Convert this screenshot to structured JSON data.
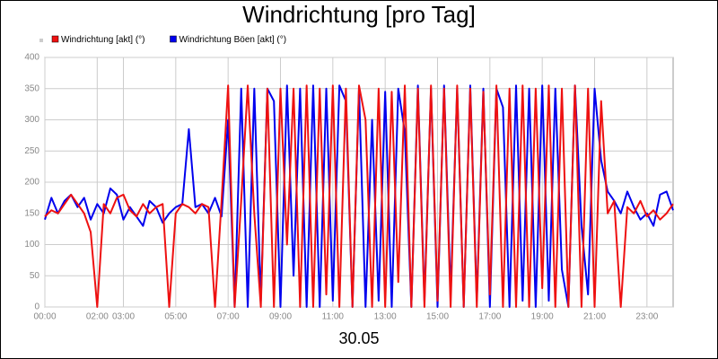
{
  "chart_data": {
    "type": "line",
    "title": "Windrichtung [pro Tag]",
    "x_label": "30.05",
    "x": [
      0,
      0.25,
      0.5,
      0.75,
      1,
      1.25,
      1.5,
      1.75,
      2,
      2.25,
      2.5,
      2.75,
      3,
      3.25,
      3.5,
      3.75,
      4,
      4.25,
      4.5,
      4.75,
      5,
      5.25,
      5.5,
      5.75,
      6,
      6.25,
      6.5,
      6.75,
      7,
      7.25,
      7.5,
      7.75,
      8,
      8.25,
      8.5,
      8.75,
      9,
      9.25,
      9.5,
      9.75,
      10,
      10.25,
      10.5,
      10.75,
      11,
      11.25,
      11.5,
      11.75,
      12,
      12.25,
      12.5,
      12.75,
      13,
      13.25,
      13.5,
      13.75,
      14,
      14.25,
      14.5,
      14.75,
      15,
      15.25,
      15.5,
      15.75,
      16,
      16.25,
      16.5,
      16.75,
      17,
      17.25,
      17.5,
      17.75,
      18,
      18.25,
      18.5,
      18.75,
      19,
      19.25,
      19.5,
      19.75,
      20,
      20.25,
      20.5,
      20.75,
      21,
      21.25,
      21.5,
      21.75,
      22,
      22.25,
      22.5,
      22.75,
      23,
      23.25,
      23.5,
      23.75,
      24
    ],
    "series": [
      {
        "name": "Windrichtung [akt] (°)",
        "color": "#ee1111",
        "values": [
          145,
          155,
          150,
          165,
          180,
          165,
          150,
          120,
          0,
          165,
          150,
          175,
          180,
          155,
          145,
          165,
          150,
          160,
          165,
          0,
          150,
          165,
          160,
          150,
          165,
          160,
          0,
          170,
          355,
          0,
          170,
          355,
          150,
          0,
          350,
          0,
          350,
          100,
          350,
          0,
          355,
          0,
          350,
          20,
          355,
          0,
          350,
          0,
          355,
          300,
          0,
          350,
          0,
          345,
          40,
          355,
          0,
          350,
          0,
          355,
          10,
          350,
          0,
          355,
          0,
          350,
          0,
          345,
          20,
          355,
          0,
          350,
          0,
          355,
          0,
          350,
          30,
          355,
          0,
          350,
          0,
          355,
          0,
          350,
          0,
          330,
          150,
          170,
          0,
          160,
          150,
          170,
          145,
          155,
          140,
          150,
          165
        ]
      },
      {
        "name": "Windrichtung Böen [akt] (°)",
        "color": "#0000ee",
        "values": [
          140,
          175,
          150,
          170,
          180,
          160,
          175,
          140,
          165,
          150,
          190,
          180,
          140,
          160,
          145,
          130,
          170,
          160,
          135,
          150,
          160,
          165,
          285,
          160,
          165,
          150,
          175,
          145,
          300,
          0,
          350,
          0,
          350,
          10,
          350,
          330,
          0,
          355,
          50,
          350,
          0,
          355,
          0,
          350,
          10,
          355,
          330,
          0,
          350,
          0,
          300,
          10,
          345,
          0,
          350,
          280,
          0,
          355,
          10,
          350,
          0,
          355,
          20,
          350,
          0,
          355,
          10,
          350,
          0,
          350,
          320,
          0,
          355,
          10,
          350,
          0,
          355,
          10,
          350,
          60,
          0,
          355,
          130,
          20,
          350,
          235,
          185,
          170,
          150,
          185,
          160,
          140,
          150,
          130,
          180,
          185,
          155
        ]
      }
    ],
    "xlim": [
      0,
      24
    ],
    "xticks": [
      {
        "value": 0,
        "label": "00:00"
      },
      {
        "value": 2,
        "label": "02:00"
      },
      {
        "value": 3,
        "label": "03:00"
      },
      {
        "value": 5,
        "label": "05:00"
      },
      {
        "value": 7,
        "label": "07:00"
      },
      {
        "value": 9,
        "label": "09:00"
      },
      {
        "value": 11,
        "label": "11:00"
      },
      {
        "value": 13,
        "label": "13:00"
      },
      {
        "value": 15,
        "label": "15:00"
      },
      {
        "value": 17,
        "label": "17:00"
      },
      {
        "value": 19,
        "label": "19:00"
      },
      {
        "value": 21,
        "label": "21:00"
      },
      {
        "value": 23,
        "label": "23:00"
      }
    ],
    "ylim": [
      0,
      400
    ],
    "yticks": [
      0,
      50,
      100,
      150,
      200,
      250,
      300,
      350,
      400
    ],
    "grid": true
  }
}
